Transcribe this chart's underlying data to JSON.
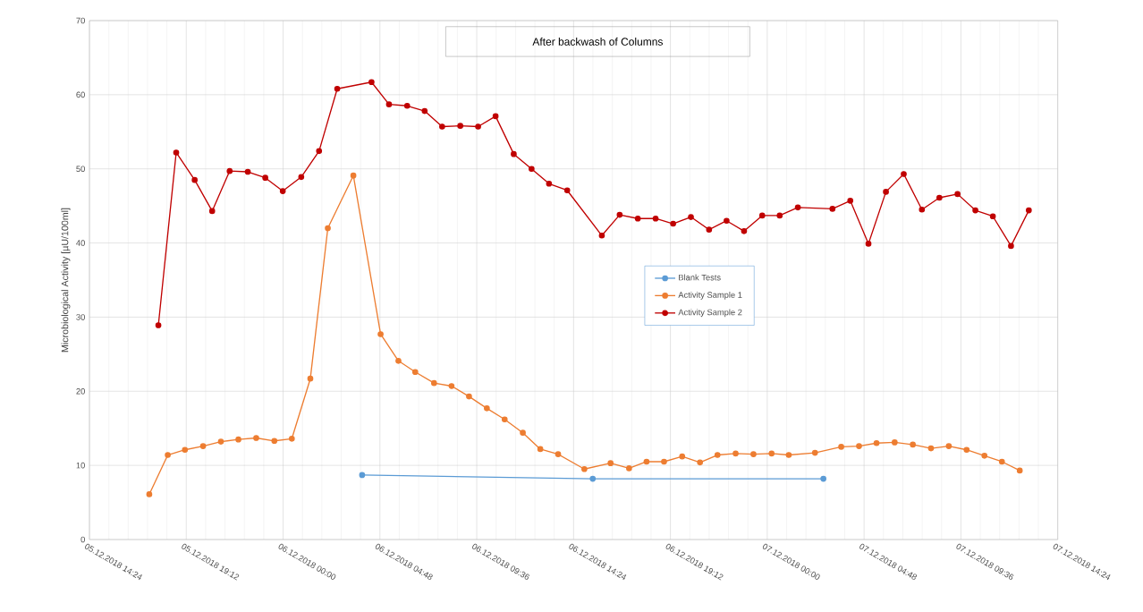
{
  "chart_data": {
    "type": "line",
    "title": "After backwash of Columns",
    "ylabel": "Microbiological Activity [µU/100ml]",
    "xlim": [
      "2018-12-05T14:24",
      "2018-12-07T14:24"
    ],
    "xticks": [
      {
        "value": "2018-12-05T14:24",
        "label": "05.12.2018 14:24"
      },
      {
        "value": "2018-12-05T19:12",
        "label": "05.12.2018 19:12"
      },
      {
        "value": "2018-12-06T00:00",
        "label": "06.12.2018 00:00"
      },
      {
        "value": "2018-12-06T04:48",
        "label": "06.12.2018 04:48"
      },
      {
        "value": "2018-12-06T09:36",
        "label": "06.12.2018 09:36"
      },
      {
        "value": "2018-12-06T14:24",
        "label": "06.12.2018 14:24"
      },
      {
        "value": "2018-12-06T19:12",
        "label": "06.12.2018 19:12"
      },
      {
        "value": "2018-12-07T00:00",
        "label": "07.12.2018 00:00"
      },
      {
        "value": "2018-12-07T04:48",
        "label": "07.12.2018 04:48"
      },
      {
        "value": "2018-12-07T09:36",
        "label": "07.12.2018 09:36"
      },
      {
        "value": "2018-12-07T14:24",
        "label": "07.12.2018 14:24"
      }
    ],
    "ylim": [
      0,
      70
    ],
    "yticks": [
      0,
      10,
      20,
      30,
      40,
      50,
      60,
      70
    ],
    "grid": true,
    "legend": "center",
    "marker": "circle",
    "line_style": "solid",
    "series": [
      {
        "name": "Blank Tests",
        "color": "#5b9bd5",
        "x": [
          "2018-12-06T03:55",
          "2018-12-06T15:21",
          "2018-12-07T02:47"
        ],
        "values": [
          8.7,
          8.2,
          8.2
        ]
      },
      {
        "name": "Activity Sample 1",
        "color": "#ed7d31",
        "x": [
          "2018-12-05T17:22",
          "2018-12-05T18:17",
          "2018-12-05T19:08",
          "2018-12-05T20:02",
          "2018-12-05T20:55",
          "2018-12-05T21:47",
          "2018-12-05T22:40",
          "2018-12-05T23:34",
          "2018-12-06T00:26",
          "2018-12-06T01:21",
          "2018-12-06T02:13",
          "2018-12-06T03:29",
          "2018-12-06T04:50",
          "2018-12-06T05:43",
          "2018-12-06T06:33",
          "2018-12-06T07:29",
          "2018-12-06T08:21",
          "2018-12-06T09:13",
          "2018-12-06T10:06",
          "2018-12-06T10:59",
          "2018-12-06T11:53",
          "2018-12-06T12:45",
          "2018-12-06T13:38",
          "2018-12-06T14:56",
          "2018-12-06T16:14",
          "2018-12-06T17:09",
          "2018-12-06T18:01",
          "2018-12-06T18:53",
          "2018-12-06T19:47",
          "2018-12-06T20:40",
          "2018-12-06T21:32",
          "2018-12-06T22:26",
          "2018-12-06T23:19",
          "2018-12-07T00:13",
          "2018-12-07T01:04",
          "2018-12-07T02:22",
          "2018-12-07T03:40",
          "2018-12-07T04:33",
          "2018-12-07T05:25",
          "2018-12-07T06:19",
          "2018-12-07T07:13",
          "2018-12-07T08:07",
          "2018-12-07T09:00",
          "2018-12-07T09:53",
          "2018-12-07T10:46",
          "2018-12-07T11:38",
          "2018-12-07T12:31"
        ],
        "values": [
          6.1,
          11.4,
          12.1,
          12.6,
          13.2,
          13.5,
          13.7,
          13.3,
          13.6,
          21.7,
          42.0,
          49.1,
          27.7,
          24.1,
          22.6,
          21.1,
          20.7,
          19.3,
          17.7,
          16.2,
          14.4,
          12.2,
          11.5,
          9.5,
          10.3,
          9.6,
          10.5,
          10.5,
          11.2,
          10.4,
          11.4,
          11.6,
          11.5,
          11.6,
          11.4,
          11.7,
          12.5,
          12.6,
          13.0,
          13.1,
          12.8,
          12.3,
          12.6,
          12.1,
          11.3,
          10.5,
          9.3
        ]
      },
      {
        "name": "Activity Sample 2",
        "color": "#c00000",
        "x": [
          "2018-12-05T17:49",
          "2018-12-05T18:42",
          "2018-12-05T19:37",
          "2018-12-05T20:29",
          "2018-12-05T21:21",
          "2018-12-05T22:15",
          "2018-12-05T23:07",
          "2018-12-05T23:59",
          "2018-12-06T00:54",
          "2018-12-06T01:47",
          "2018-12-06T02:41",
          "2018-12-06T04:23",
          "2018-12-06T05:15",
          "2018-12-06T06:09",
          "2018-12-06T07:01",
          "2018-12-06T07:53",
          "2018-12-06T08:47",
          "2018-12-06T09:40",
          "2018-12-06T10:32",
          "2018-12-06T11:26",
          "2018-12-06T12:19",
          "2018-12-06T13:11",
          "2018-12-06T14:05",
          "2018-12-06T15:48",
          "2018-12-06T16:41",
          "2018-12-06T17:35",
          "2018-12-06T18:28",
          "2018-12-06T19:20",
          "2018-12-06T20:13",
          "2018-12-06T21:07",
          "2018-12-06T21:59",
          "2018-12-06T22:51",
          "2018-12-06T23:45",
          "2018-12-07T00:37",
          "2018-12-07T01:31",
          "2018-12-07T03:14",
          "2018-12-07T04:07",
          "2018-12-07T05:01",
          "2018-12-07T05:53",
          "2018-12-07T06:46",
          "2018-12-07T07:40",
          "2018-12-07T08:32",
          "2018-12-07T09:26",
          "2018-12-07T10:19",
          "2018-12-07T11:11",
          "2018-12-07T12:05",
          "2018-12-07T12:58"
        ],
        "values": [
          28.9,
          52.2,
          48.5,
          44.3,
          49.7,
          49.6,
          48.8,
          47.0,
          48.9,
          52.4,
          60.8,
          61.7,
          58.7,
          58.5,
          57.8,
          55.7,
          55.8,
          55.7,
          57.1,
          52.0,
          50.0,
          48.0,
          47.1,
          41.0,
          43.8,
          43.3,
          43.3,
          42.6,
          43.5,
          41.8,
          43.0,
          41.6,
          43.7,
          43.7,
          44.8,
          44.6,
          45.7,
          39.9,
          46.9,
          49.3,
          44.5,
          46.1,
          46.6,
          44.4,
          43.6,
          39.6,
          44.4
        ]
      }
    ]
  }
}
